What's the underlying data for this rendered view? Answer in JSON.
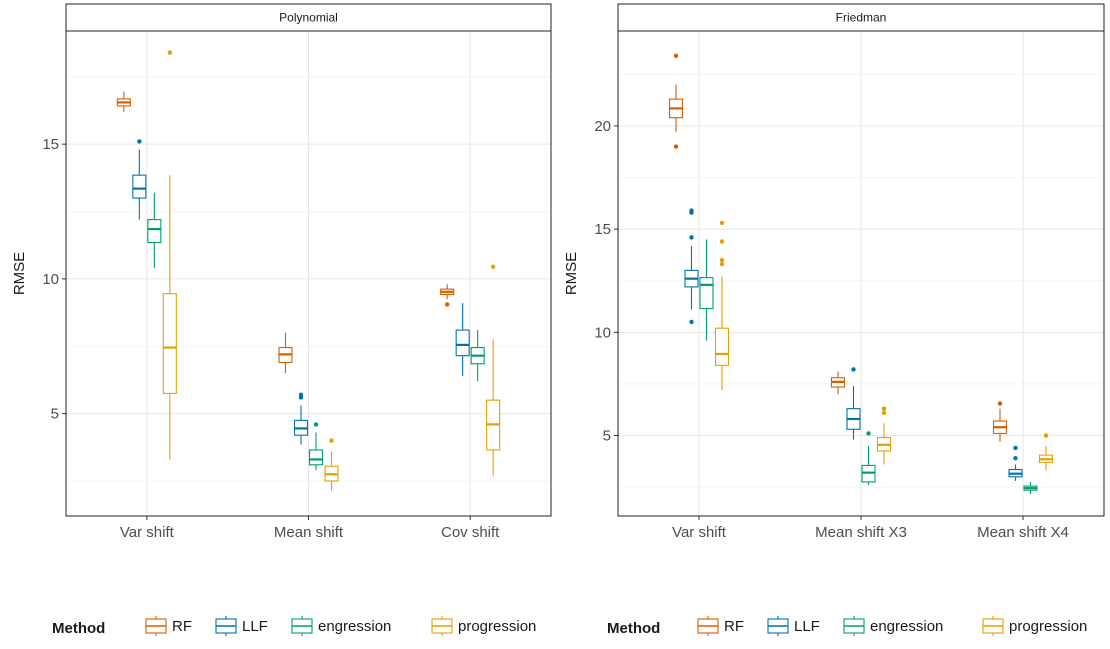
{
  "legend": {
    "title": "Method",
    "entries": [
      {
        "label": "RF",
        "color": "#D55E00"
      },
      {
        "label": "LLF",
        "color": "#0072B2"
      },
      {
        "label": "engression",
        "color": "#009E73"
      },
      {
        "label": "progression",
        "color": "#E69F00"
      }
    ]
  },
  "chart_data": [
    {
      "type": "boxplot",
      "title": "Polynomial",
      "ylabel": "RMSE",
      "ylim": [
        1.2,
        19.2
      ],
      "yticks": [
        5,
        10,
        15
      ],
      "grid": true,
      "categories": [
        "Var shift",
        "Mean shift",
        "Cov shift"
      ],
      "series": [
        {
          "name": "RF",
          "color": "#D55E00",
          "boxes": [
            {
              "whiskerLow": 16.2,
              "q1": 16.42,
              "median": 16.55,
              "q3": 16.68,
              "whiskerHigh": 16.95,
              "outliers": []
            },
            {
              "whiskerLow": 6.5,
              "q1": 6.9,
              "median": 7.2,
              "q3": 7.45,
              "whiskerHigh": 8.0,
              "outliers": []
            },
            {
              "whiskerLow": 9.25,
              "q1": 9.42,
              "median": 9.52,
              "q3": 9.62,
              "whiskerHigh": 9.8,
              "outliers": [
                9.05
              ]
            }
          ]
        },
        {
          "name": "LLF",
          "color": "#0072B2",
          "boxes": [
            {
              "whiskerLow": 12.2,
              "q1": 13.0,
              "median": 13.35,
              "q3": 13.85,
              "whiskerHigh": 14.8,
              "outliers": [
                15.1
              ]
            },
            {
              "whiskerLow": 3.85,
              "q1": 4.2,
              "median": 4.45,
              "q3": 4.75,
              "whiskerHigh": 5.3,
              "outliers": [
                5.6,
                5.7
              ]
            },
            {
              "whiskerLow": 6.4,
              "q1": 7.15,
              "median": 7.55,
              "q3": 8.1,
              "whiskerHigh": 9.1,
              "outliers": []
            }
          ]
        },
        {
          "name": "engression",
          "color": "#009E73",
          "boxes": [
            {
              "whiskerLow": 10.4,
              "q1": 11.35,
              "median": 11.85,
              "q3": 12.2,
              "whiskerHigh": 13.2,
              "outliers": []
            },
            {
              "whiskerLow": 2.9,
              "q1": 3.1,
              "median": 3.3,
              "q3": 3.65,
              "whiskerHigh": 4.3,
              "outliers": [
                4.6
              ]
            },
            {
              "whiskerLow": 6.2,
              "q1": 6.85,
              "median": 7.15,
              "q3": 7.45,
              "whiskerHigh": 8.1,
              "outliers": []
            }
          ]
        },
        {
          "name": "progression",
          "color": "#E69F00",
          "boxes": [
            {
              "whiskerLow": 3.3,
              "q1": 5.75,
              "median": 7.45,
              "q3": 9.45,
              "whiskerHigh": 13.85,
              "outliers": [
                18.4
              ]
            },
            {
              "whiskerLow": 2.15,
              "q1": 2.5,
              "median": 2.75,
              "q3": 3.05,
              "whiskerHigh": 3.6,
              "outliers": [
                4.0
              ]
            },
            {
              "whiskerLow": 2.7,
              "q1": 3.65,
              "median": 4.6,
              "q3": 5.5,
              "whiskerHigh": 7.75,
              "outliers": [
                10.45
              ]
            }
          ]
        }
      ]
    },
    {
      "type": "boxplot",
      "title": "Friedman",
      "ylabel": "RMSE",
      "ylim": [
        1.1,
        24.6
      ],
      "yticks": [
        5,
        10,
        15,
        20
      ],
      "grid": true,
      "categories": [
        "Var shift",
        "Mean shift X3",
        "Mean shift X4"
      ],
      "series": [
        {
          "name": "RF",
          "color": "#D55E00",
          "boxes": [
            {
              "whiskerLow": 19.7,
              "q1": 20.4,
              "median": 20.85,
              "q3": 21.3,
              "whiskerHigh": 22.0,
              "outliers": [
                19.0,
                23.4
              ]
            },
            {
              "whiskerLow": 7.0,
              "q1": 7.35,
              "median": 7.6,
              "q3": 7.8,
              "whiskerHigh": 8.1,
              "outliers": []
            },
            {
              "whiskerLow": 4.7,
              "q1": 5.1,
              "median": 5.4,
              "q3": 5.7,
              "whiskerHigh": 6.3,
              "outliers": [
                6.55
              ]
            }
          ]
        },
        {
          "name": "LLF",
          "color": "#0072B2",
          "boxes": [
            {
              "whiskerLow": 11.1,
              "q1": 12.2,
              "median": 12.6,
              "q3": 13.0,
              "whiskerHigh": 14.2,
              "outliers": [
                10.5,
                14.6,
                15.8,
                15.9
              ]
            },
            {
              "whiskerLow": 4.8,
              "q1": 5.3,
              "median": 5.8,
              "q3": 6.3,
              "whiskerHigh": 7.4,
              "outliers": [
                8.2
              ]
            },
            {
              "whiskerLow": 2.8,
              "q1": 3.0,
              "median": 3.15,
              "q3": 3.35,
              "whiskerHigh": 3.6,
              "outliers": [
                3.9,
                4.4
              ]
            }
          ]
        },
        {
          "name": "engression",
          "color": "#009E73",
          "boxes": [
            {
              "whiskerLow": 9.6,
              "q1": 11.15,
              "median": 12.3,
              "q3": 12.65,
              "whiskerHigh": 14.5,
              "outliers": []
            },
            {
              "whiskerLow": 2.6,
              "q1": 2.75,
              "median": 3.2,
              "q3": 3.55,
              "whiskerHigh": 4.5,
              "outliers": [
                5.1
              ]
            },
            {
              "whiskerLow": 2.15,
              "q1": 2.35,
              "median": 2.45,
              "q3": 2.55,
              "whiskerHigh": 2.75,
              "outliers": []
            }
          ]
        },
        {
          "name": "progression",
          "color": "#E69F00",
          "boxes": [
            {
              "whiskerLow": 7.2,
              "q1": 8.4,
              "median": 8.95,
              "q3": 10.2,
              "whiskerHigh": 12.7,
              "outliers": [
                13.3,
                13.5,
                14.4,
                15.3
              ]
            },
            {
              "whiskerLow": 3.6,
              "q1": 4.25,
              "median": 4.55,
              "q3": 4.9,
              "whiskerHigh": 5.6,
              "outliers": [
                6.1,
                6.3
              ]
            },
            {
              "whiskerLow": 3.3,
              "q1": 3.7,
              "median": 3.85,
              "q3": 4.05,
              "whiskerHigh": 4.5,
              "outliers": [
                5.0
              ]
            }
          ]
        }
      ]
    }
  ]
}
